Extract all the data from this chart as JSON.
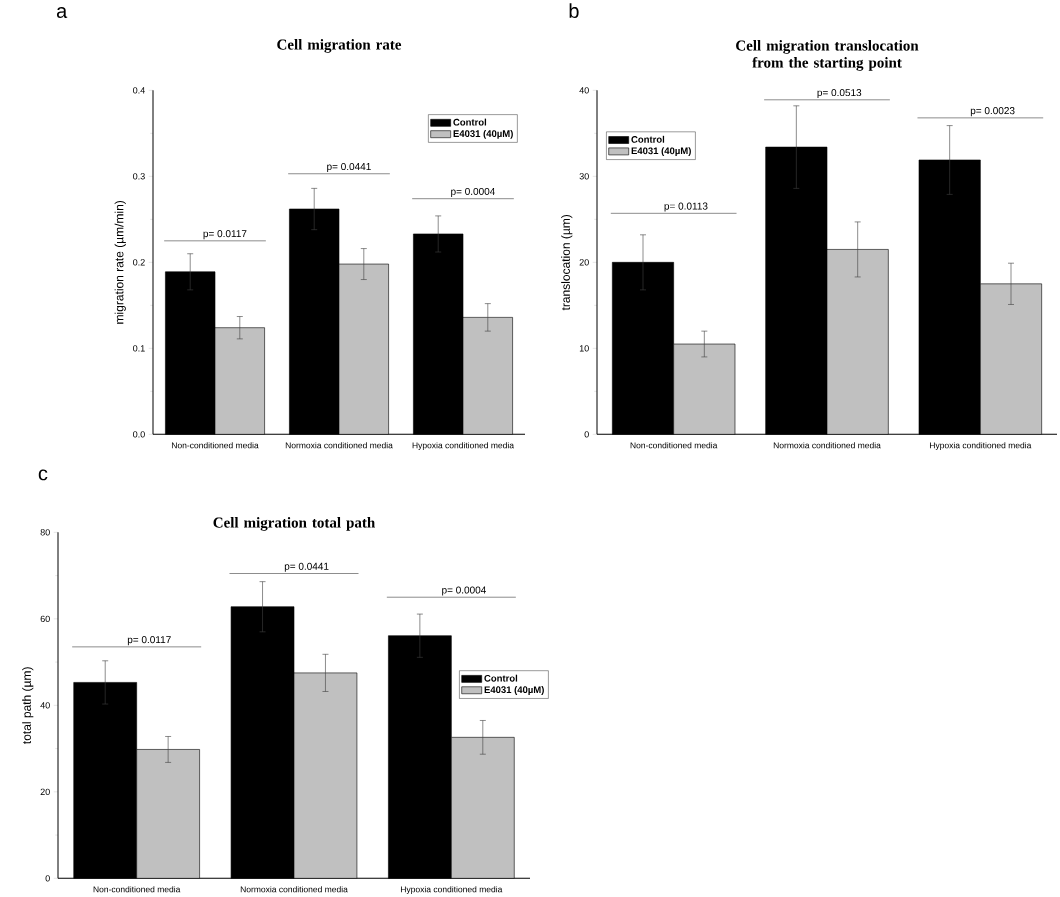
{
  "chart_data": [
    {
      "type": "bar",
      "title": "Cell migration rate",
      "ylabel": "migration rate (µm/min)",
      "categories": [
        "Non-conditioned media",
        "Normoxia conditioned media",
        "Hypoxia conditioned media"
      ],
      "series": [
        {
          "name": "Control",
          "color": "#000000",
          "values": [
            0.189,
            0.262,
            0.233
          ],
          "errors": [
            0.021,
            0.024,
            0.021
          ]
        },
        {
          "name": "E4031 (40µM)",
          "color": "#c0c0c0",
          "values": [
            0.124,
            0.198,
            0.136
          ],
          "errors": [
            0.013,
            0.018,
            0.016
          ]
        }
      ],
      "ylim": [
        0,
        0.4
      ],
      "yticks": [
        {
          "value": 0,
          "label": "0.0"
        },
        0.1,
        0.2,
        0.3,
        0.4
      ],
      "legend": "top right",
      "annotations": [
        "a",
        "p= 0.0117",
        "p= 0.0441",
        "p= 0.0004"
      ]
    },
    {
      "type": "bar",
      "title": "Cell migration translocation from the starting point",
      "ylabel": "translocation (µm)",
      "categories": [
        "Non-conditioned media",
        "Normoxia conditioned media",
        "Hypoxia conditioned media"
      ],
      "series": [
        {
          "name": "Control",
          "color": "#000000",
          "values": [
            20.0,
            33.4,
            31.9
          ],
          "errors": [
            3.2,
            4.8,
            4.0
          ]
        },
        {
          "name": "E4031 (40µM)",
          "color": "#c0c0c0",
          "values": [
            10.5,
            21.5,
            17.5
          ],
          "errors": [
            1.5,
            3.2,
            2.4
          ]
        }
      ],
      "ylim": [
        0,
        40
      ],
      "yticks": [
        0,
        10,
        20,
        30,
        40
      ],
      "legend": "top left",
      "annotations": [
        "b",
        "p= 0.0113",
        "p= 0.0513",
        "p= 0.0023"
      ]
    },
    {
      "type": "bar",
      "title": "Cell migration total path",
      "ylabel": "total path (µm)",
      "categories": [
        "Non-conditioned media",
        "Normoxia conditioned media",
        "Hypoxia conditioned media"
      ],
      "series": [
        {
          "name": "Control",
          "color": "#000000",
          "values": [
            45.3,
            62.8,
            56.1
          ],
          "errors": [
            5.0,
            5.8,
            5.0
          ]
        },
        {
          "name": "E4031 (40µM)",
          "color": "#c0c0c0",
          "values": [
            29.8,
            47.5,
            32.6
          ],
          "errors": [
            3.0,
            4.3,
            3.9
          ]
        }
      ],
      "ylim": [
        0,
        80
      ],
      "yticks": [
        0,
        20,
        40,
        60,
        80
      ],
      "legend": "right",
      "annotations": [
        "c",
        "p= 0.0117",
        "p= 0.0441",
        "p= 0.0004"
      ]
    }
  ]
}
